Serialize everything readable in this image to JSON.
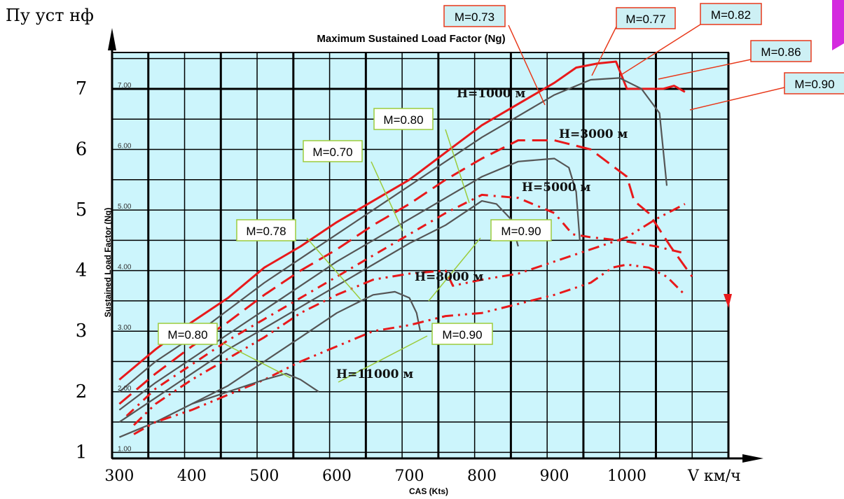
{
  "chart_data": {
    "type": "line",
    "title": "Maximum Sustained Load Factor (Ng)",
    "left_axis_title": "Пу уст нф",
    "ylabel": "Sustained Load Factor (Ng)",
    "xlabel": "CAS (Kts)",
    "x_axis_unit_label": "V км/ч",
    "x_ticks": [
      "300",
      "400",
      "500",
      "600",
      "700",
      "800",
      "900",
      "1000"
    ],
    "x_ticks_values": [
      300,
      400,
      500,
      600,
      700,
      800,
      900,
      1000
    ],
    "y_ticks_big": [
      "1",
      "2",
      "3",
      "4",
      "5",
      "6",
      "7"
    ],
    "y_ticks_small": [
      "1.00",
      "2.00",
      "3.00",
      "4.00",
      "5.00",
      "6.00",
      "7.00"
    ],
    "xlim": [
      290,
      1140
    ],
    "ylim": [
      0.9,
      7.6
    ],
    "grid": true,
    "colors": {
      "plot_bg": "#ccf5fc",
      "grid": "#000000",
      "red": "#e8191b",
      "gray": "#555555",
      "green_box": "#9ccb3b",
      "red_box": "#e8391b",
      "box_bg_red": "#cdf0f4",
      "box_bg_white": "#ffffff"
    },
    "altitude_labels": [
      "Н=1000 м",
      "Н=3000 м",
      "Н=5000 м",
      "Н=8000 м",
      "Н=11000 м"
    ],
    "mach_labels": [
      {
        "text": "M=0.73",
        "style": "red"
      },
      {
        "text": "M=0.77",
        "style": "red"
      },
      {
        "text": "M=0.82",
        "style": "red"
      },
      {
        "text": "M=0.86",
        "style": "red"
      },
      {
        "text": "M=0.90",
        "style": "red"
      },
      {
        "text": "M=0.80",
        "style": "green"
      },
      {
        "text": "M=0.70",
        "style": "green"
      },
      {
        "text": "M=0.78",
        "style": "green"
      },
      {
        "text": "M=0.90",
        "style": "green"
      },
      {
        "text": "M=0.80",
        "style": "green"
      },
      {
        "text": "M=0.90",
        "style": "green"
      }
    ],
    "series": [
      {
        "style": "red-solid",
        "x": [
          300,
          350,
          400,
          450,
          500,
          550,
          600,
          650,
          700,
          750,
          800,
          850,
          900,
          930,
          960,
          985,
          1000,
          1050,
          1065,
          1080
        ],
        "y": [
          2.2,
          2.7,
          3.15,
          3.55,
          4.05,
          4.4,
          4.8,
          5.15,
          5.5,
          5.95,
          6.4,
          6.75,
          7.1,
          7.35,
          7.42,
          7.45,
          7.0,
          7.0,
          7.05,
          6.95
        ]
      },
      {
        "style": "gray",
        "x": [
          300,
          350,
          400,
          450,
          500,
          550,
          600,
          650,
          700,
          750,
          800,
          850,
          900,
          950,
          990,
          1020,
          1045,
          1055
        ],
        "y": [
          2.0,
          2.5,
          2.9,
          3.35,
          3.8,
          4.2,
          4.6,
          5.0,
          5.4,
          5.8,
          6.2,
          6.55,
          6.9,
          7.15,
          7.18,
          7.0,
          6.6,
          5.4
        ]
      },
      {
        "style": "red-dash",
        "x": [
          300,
          350,
          400,
          450,
          500,
          550,
          600,
          650,
          700,
          750,
          800,
          850,
          900,
          950,
          1000,
          1010,
          1030,
          1060,
          1090
        ],
        "y": [
          1.8,
          2.3,
          2.75,
          3.15,
          3.6,
          4.0,
          4.35,
          4.75,
          5.1,
          5.5,
          5.85,
          6.15,
          6.15,
          6.0,
          5.55,
          5.15,
          4.95,
          4.4,
          3.9
        ]
      },
      {
        "style": "gray",
        "x": [
          300,
          350,
          400,
          450,
          500,
          550,
          600,
          650,
          700,
          750,
          800,
          850,
          900,
          920,
          930,
          935
        ],
        "y": [
          1.7,
          2.15,
          2.55,
          2.95,
          3.35,
          3.75,
          4.15,
          4.5,
          4.85,
          5.2,
          5.55,
          5.8,
          5.85,
          5.7,
          5.3,
          4.5
        ]
      },
      {
        "style": "red-dashdot",
        "x": [
          310,
          350,
          400,
          450,
          500,
          550,
          600,
          650,
          700,
          750,
          800,
          850,
          900,
          925,
          950,
          990,
          1040,
          1075
        ],
        "y": [
          1.6,
          2.05,
          2.45,
          2.85,
          3.2,
          3.55,
          3.9,
          4.25,
          4.6,
          4.95,
          5.25,
          5.2,
          4.95,
          4.6,
          4.55,
          4.5,
          4.4,
          4.3
        ]
      },
      {
        "style": "gray",
        "x": [
          300,
          350,
          400,
          450,
          500,
          550,
          600,
          650,
          700,
          750,
          800,
          820,
          840,
          850
        ],
        "y": [
          1.5,
          1.9,
          2.3,
          2.7,
          3.05,
          3.4,
          3.75,
          4.1,
          4.45,
          4.75,
          5.15,
          5.1,
          4.85,
          4.4
        ]
      },
      {
        "style": "red-dashdotdot",
        "x": [
          320,
          350,
          400,
          450,
          500,
          550,
          600,
          650,
          700,
          750,
          760,
          800,
          850,
          900,
          950,
          1000,
          1040,
          1080
        ],
        "y": [
          1.45,
          1.8,
          2.2,
          2.55,
          2.9,
          3.3,
          3.6,
          3.85,
          3.95,
          4.0,
          3.75,
          3.85,
          3.95,
          4.15,
          4.35,
          4.55,
          4.85,
          5.1
        ]
      },
      {
        "style": "gray",
        "x": [
          300,
          350,
          400,
          450,
          500,
          550,
          600,
          650,
          680,
          700,
          710,
          715
        ],
        "y": [
          1.25,
          1.5,
          1.8,
          2.1,
          2.5,
          2.9,
          3.3,
          3.6,
          3.65,
          3.55,
          3.3,
          3.0
        ]
      },
      {
        "style": "red-dashdotdot",
        "x": [
          320,
          350,
          400,
          450,
          500,
          550,
          600,
          650,
          700,
          750,
          800,
          850,
          900,
          950,
          980,
          1000,
          1030,
          1055,
          1080
        ],
        "y": [
          1.3,
          1.5,
          1.7,
          1.95,
          2.2,
          2.5,
          2.75,
          3.0,
          3.1,
          3.25,
          3.3,
          3.45,
          3.6,
          3.8,
          4.05,
          4.1,
          4.05,
          3.9,
          3.6
        ]
      },
      {
        "style": "gray",
        "x": [
          400,
          450,
          500,
          530,
          550,
          575
        ],
        "y": [
          1.8,
          2.0,
          2.2,
          2.3,
          2.2,
          2.0
        ]
      }
    ]
  }
}
